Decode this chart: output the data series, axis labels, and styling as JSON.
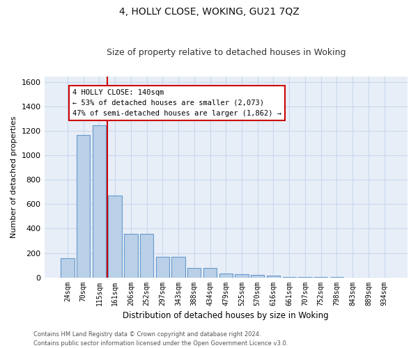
{
  "title": "4, HOLLY CLOSE, WOKING, GU21 7QZ",
  "subtitle": "Size of property relative to detached houses in Woking",
  "xlabel": "Distribution of detached houses by size in Woking",
  "ylabel": "Number of detached properties",
  "categories": [
    "24sqm",
    "70sqm",
    "115sqm",
    "161sqm",
    "206sqm",
    "252sqm",
    "297sqm",
    "343sqm",
    "388sqm",
    "434sqm",
    "479sqm",
    "525sqm",
    "570sqm",
    "616sqm",
    "661sqm",
    "707sqm",
    "752sqm",
    "798sqm",
    "843sqm",
    "889sqm",
    "934sqm"
  ],
  "values": [
    160,
    1170,
    1250,
    670,
    360,
    360,
    170,
    170,
    80,
    80,
    30,
    25,
    20,
    15,
    5,
    3,
    3,
    2,
    0,
    0,
    0
  ],
  "bar_color": "#bad0e8",
  "bar_edge_color": "#6699cc",
  "vline_color": "#cc0000",
  "annotation_text": "4 HOLLY CLOSE: 140sqm\n← 53% of detached houses are smaller (2,073)\n47% of semi-detached houses are larger (1,862) →",
  "annotation_box_color": "#ffffff",
  "annotation_box_edgecolor": "#cc0000",
  "ylim": [
    0,
    1650
  ],
  "yticks": [
    0,
    200,
    400,
    600,
    800,
    1000,
    1200,
    1400,
    1600
  ],
  "footer1": "Contains HM Land Registry data © Crown copyright and database right 2024.",
  "footer2": "Contains public sector information licensed under the Open Government Licence v3.0.",
  "grid_color": "#c8d8ec",
  "background_color": "#e8eef8",
  "bar_width": 0.85,
  "title_fontsize": 10,
  "subtitle_fontsize": 9
}
